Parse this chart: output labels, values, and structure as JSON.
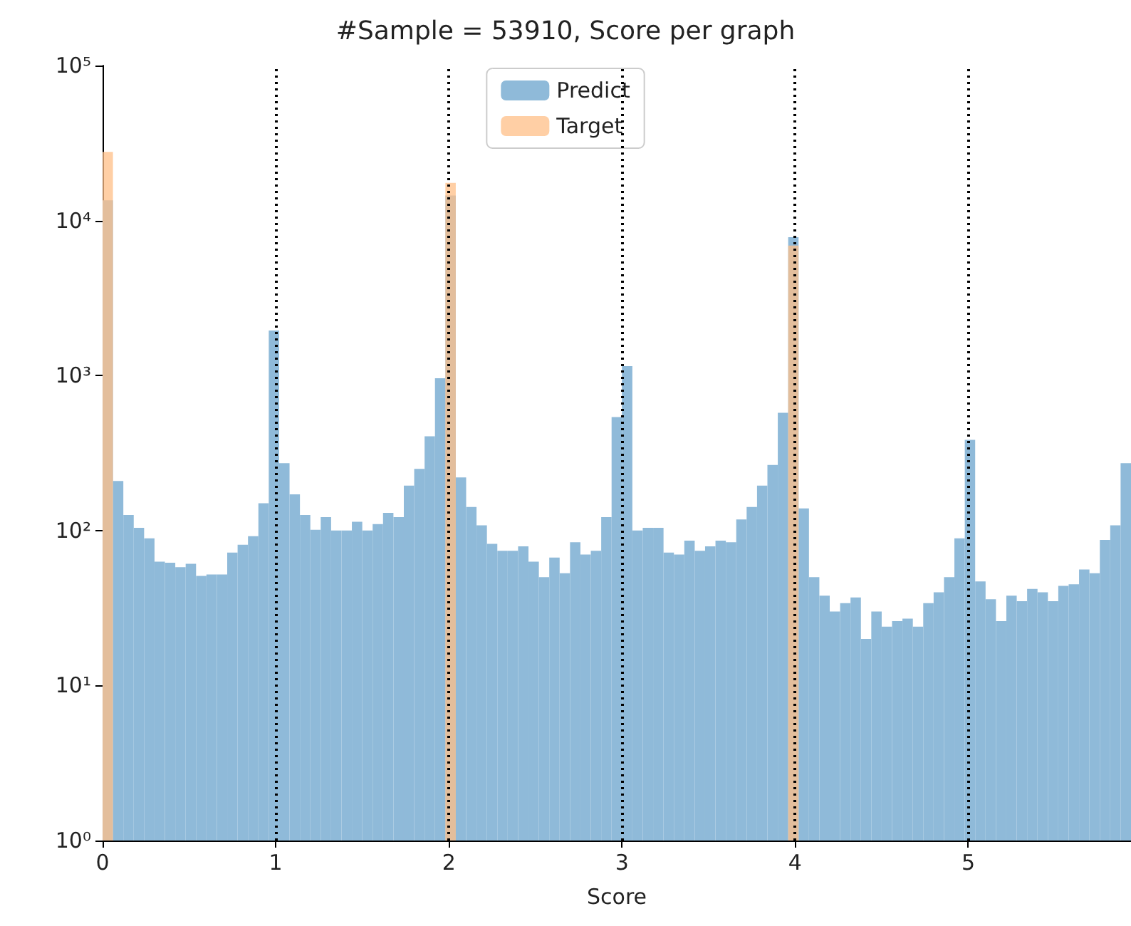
{
  "chart_data": {
    "type": "histogram",
    "title": "#Sample = 53910, Score per graph",
    "xlabel": "Score",
    "bins": [
      0,
      0.06,
      0.12,
      0.18,
      0.24,
      0.3,
      0.36,
      0.42,
      0.48,
      0.54,
      0.6,
      0.66,
      0.72,
      0.78,
      0.84,
      0.9,
      0.96,
      1.02,
      1.08,
      1.14,
      1.2,
      1.26,
      1.32,
      1.38,
      1.44,
      1.5,
      1.56,
      1.62,
      1.68,
      1.74,
      1.8,
      1.86,
      1.92,
      1.98,
      2.04,
      2.1,
      2.16,
      2.22,
      2.28,
      2.34,
      2.4,
      2.46,
      2.52,
      2.58,
      2.64,
      2.7,
      2.76,
      2.82,
      2.88,
      2.94,
      3,
      3.06,
      3.12,
      3.18,
      3.24,
      3.3,
      3.36,
      3.42,
      3.48,
      3.54,
      3.6,
      3.66,
      3.72,
      3.78,
      3.84,
      3.9,
      3.96,
      4.02,
      4.08,
      4.14,
      4.2,
      4.26,
      4.32,
      4.38,
      4.44,
      4.5,
      4.56,
      4.62,
      4.68,
      4.74,
      4.8,
      4.86,
      4.92,
      4.98,
      5.04,
      5.1,
      5.16,
      5.22,
      5.28,
      5.34,
      5.4,
      5.46,
      5.52,
      5.58,
      5.64,
      5.7,
      5.76,
      5.82,
      5.88,
      5.94
    ],
    "series": [
      {
        "name": "Predict",
        "color": "#8fbad9",
        "values": [
          13500,
          209,
          126,
          104,
          89,
          63,
          62,
          58,
          61,
          51,
          52,
          52,
          72,
          81,
          92,
          150,
          1950,
          272,
          171,
          126,
          101,
          122,
          100,
          100,
          114,
          100,
          110,
          130,
          122,
          195,
          250,
          405,
          960,
          14500,
          220,
          142,
          108,
          82,
          74,
          74,
          79,
          63,
          50,
          67,
          53,
          84,
          70,
          74,
          122,
          540,
          1150,
          100,
          104,
          104,
          72,
          70,
          86,
          74,
          79,
          86,
          84,
          118,
          142,
          195,
          265,
          575,
          7800,
          139,
          50,
          38,
          30,
          34,
          37,
          20,
          30,
          24,
          26,
          27,
          24,
          34,
          40,
          50,
          89,
          385,
          47,
          36,
          26,
          38,
          35,
          42,
          40,
          35,
          44,
          45,
          56,
          53,
          87,
          108,
          272
        ]
      },
      {
        "name": "Target",
        "color": "#ffbf87",
        "values": [
          27700,
          null,
          null,
          null,
          null,
          null,
          null,
          null,
          null,
          null,
          null,
          null,
          null,
          null,
          null,
          null,
          null,
          null,
          null,
          null,
          null,
          null,
          null,
          null,
          null,
          null,
          null,
          null,
          null,
          null,
          null,
          null,
          null,
          17500,
          null,
          null,
          null,
          null,
          null,
          null,
          null,
          null,
          null,
          null,
          null,
          null,
          null,
          null,
          null,
          null,
          null,
          null,
          null,
          null,
          null,
          null,
          null,
          null,
          null,
          null,
          null,
          null,
          null,
          null,
          null,
          null,
          6900,
          null,
          null,
          null,
          null,
          null,
          null,
          null,
          null,
          null,
          null,
          null,
          null,
          null,
          null,
          null,
          null,
          null,
          null,
          null,
          null,
          null,
          null,
          null,
          null,
          null,
          null,
          null,
          null,
          null,
          null,
          null,
          null
        ]
      }
    ],
    "xlim": [
      0,
      5.94
    ],
    "xticks": [
      0,
      1,
      2,
      3,
      4,
      5
    ],
    "ylim": [
      1,
      100000
    ],
    "yticks": [
      {
        "value": 1,
        "label": "10⁰"
      },
      {
        "value": 10,
        "label": "10¹"
      },
      {
        "value": 100,
        "label": "10²"
      },
      {
        "value": 1000,
        "label": "10³"
      },
      {
        "value": 10000,
        "label": "10⁴"
      },
      {
        "value": 100000,
        "label": "10⁵"
      }
    ],
    "log": "y",
    "grid": false,
    "legend": "top",
    "ref_lines": [
      {
        "axis": "x",
        "value": 1,
        "color": "#000000",
        "line_style": "dotted"
      },
      {
        "axis": "x",
        "value": 2,
        "color": "#000000",
        "line_style": "dotted"
      },
      {
        "axis": "x",
        "value": 3,
        "color": "#000000",
        "line_style": "dotted"
      },
      {
        "axis": "x",
        "value": 4,
        "color": "#000000",
        "line_style": "dotted"
      },
      {
        "axis": "x",
        "value": 5,
        "color": "#000000",
        "line_style": "dotted"
      }
    ]
  }
}
